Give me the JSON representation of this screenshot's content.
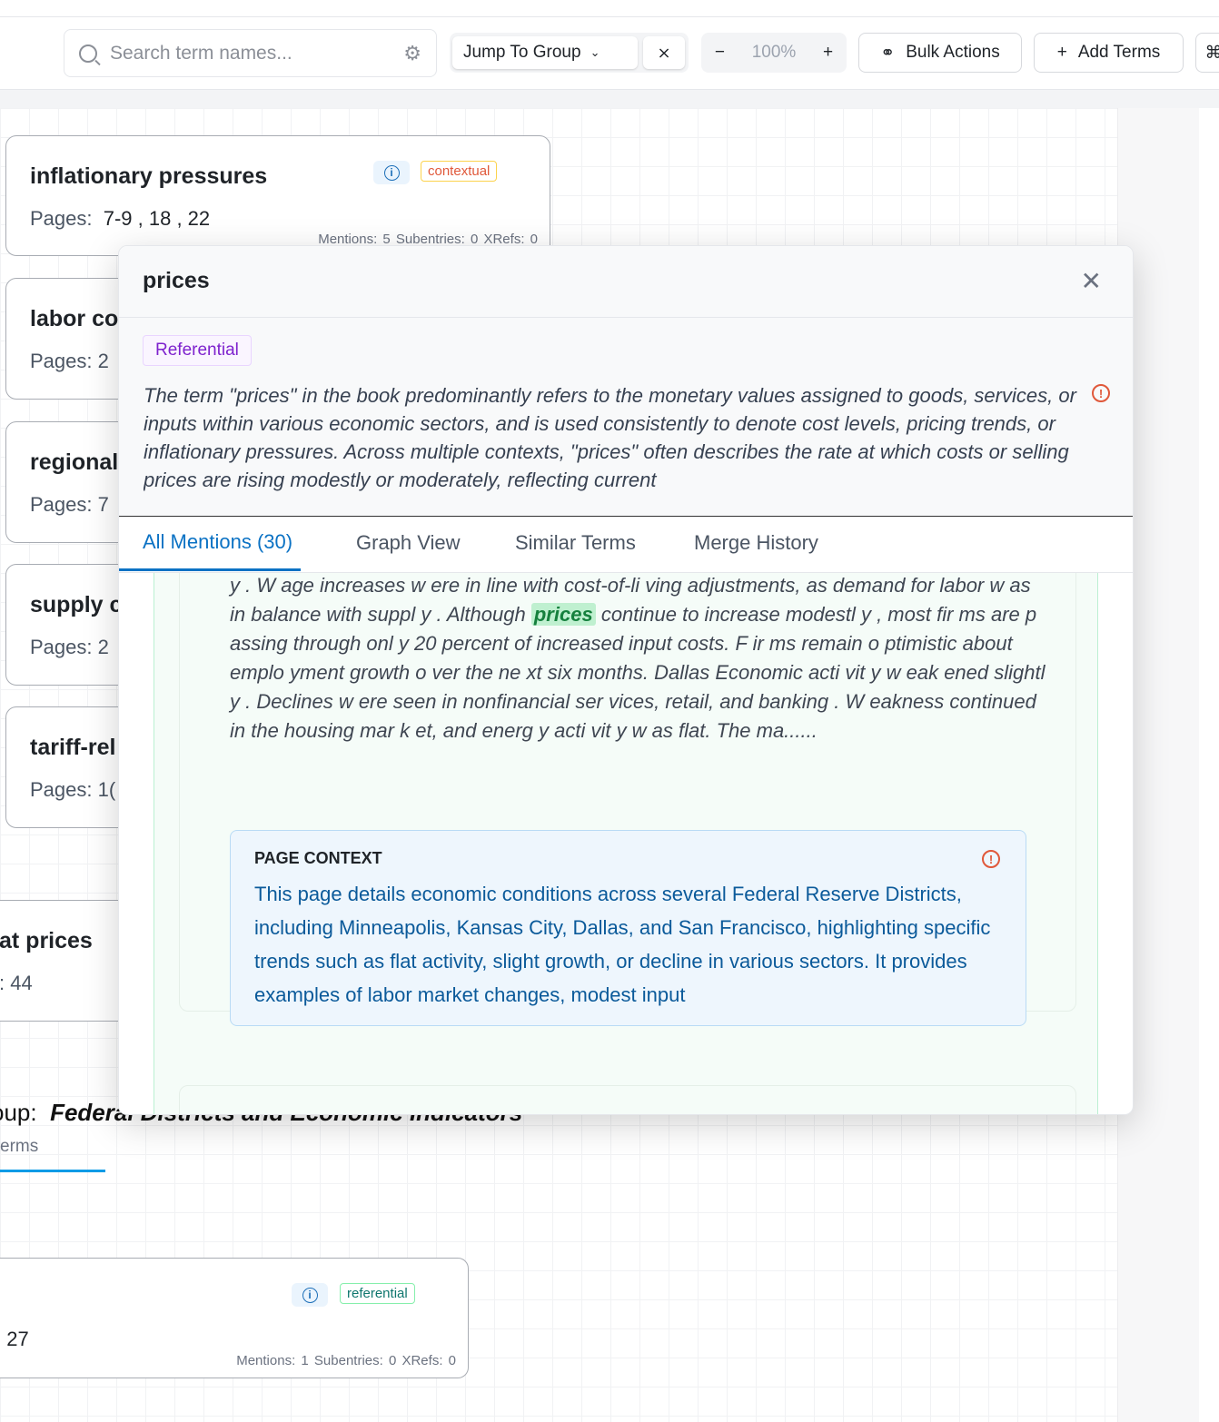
{
  "toolbar": {
    "search_placeholder": "Search term names...",
    "jump_to_group": "Jump To Group",
    "zoom_level": "100%",
    "zoom_out": "−",
    "zoom_in": "+",
    "bulk_actions": "Bulk Actions",
    "add_terms": "Add Terms"
  },
  "cards": [
    {
      "title": "inflationary pressures",
      "pages_label": "Pages:",
      "pages": "7-9 ,  18 ,  22",
      "badge": "contextual",
      "meta": "Mentions: 5   Subentries: 0   XRefs: 0"
    },
    {
      "title": "labor co",
      "pages": "Pages:  2"
    },
    {
      "title": "regional",
      "pages": "Pages:  7"
    },
    {
      "title": "supply c",
      "pages": "Pages:  2"
    },
    {
      "title": "tariff-rel",
      "pages": "Pages:  1("
    },
    {
      "title": "at prices",
      "pages": ":  44"
    },
    {
      "title": "",
      "pages": ":  27",
      "badge": "referential",
      "meta": "Mentions: 1   Subentries: 0   XRefs: 0"
    }
  ],
  "group": {
    "prefix": "oup:",
    "name": "Federal Districts and Economic Indicators",
    "sub": "erms"
  },
  "modal": {
    "title": "prices",
    "type_badge": "Referential",
    "description": "The term \"prices\" in the book predominantly refers to the monetary values assigned to goods, services, or inputs within various economic sectors, and is used consistently to denote cost levels, pricing trends, or inflationary pressures. Across multiple contexts, \"prices\" often describes the rate at which costs or selling prices are rising modestly or moderately, reflecting current",
    "tabs": [
      "All Mentions (30)",
      "Graph View",
      "Similar Terms",
      "Merge History"
    ],
    "excerpt_before": "nal Tools, agricultural conditions remained w eak. Kansas City Economic growth in the T enth District slow ed slightl y , reflecting softer labor conditions and cooling consumer acti vit y . W age increases w ere in line with cost-of-li ving adjustments, as demand for labor w as in balance with suppl y . Although",
    "excerpt_highlight": "prices",
    "excerpt_after": "continue to increase modestl y , most fir ms are p assing through onl y 20 percent of increased input costs. F ir ms remain o ptimistic about emplo yment growth o ver the ne xt six months. Dallas Economic acti vit y w eak ened slightl y . Declines w ere seen in nonfinancial ser vices, retail, and banking . W eakness continued in the housing mar k et, and energ y acti vit y w as flat. The ma......",
    "page_context_label": "PAGE CONTEXT",
    "page_context": "This page details economic conditions across several Federal Reserve Districts, including Minneapolis, Kansas City, Dallas, and San Francisco, highlighting specific trends such as flat activity, slight growth, or decline in various sectors. It provides examples of labor market changes, modest input"
  },
  "colors": {
    "accent": "#0b72c4",
    "referential": "#7e22ce",
    "highlight": "#bff0d0",
    "alert": "#e0583a"
  }
}
